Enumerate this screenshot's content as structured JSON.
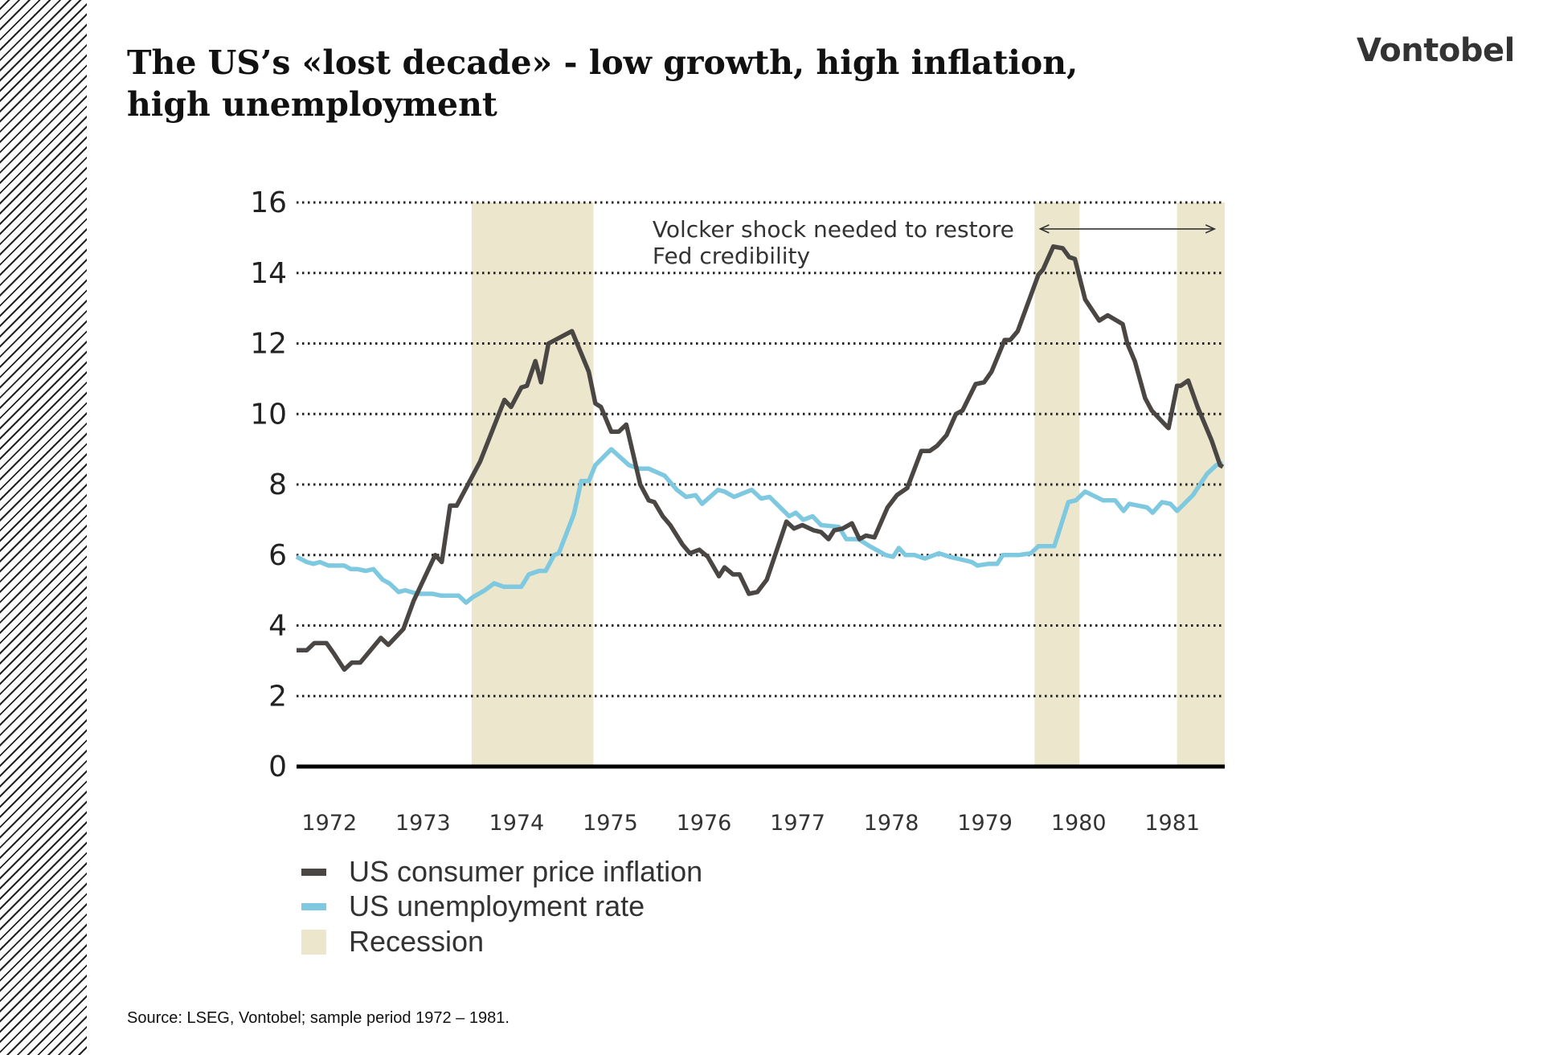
{
  "header": {
    "title": "The US’s «lost decade» - low growth, high inflation, high unemployment",
    "logo_text": "Vontobel"
  },
  "footer": {
    "source": "Source: LSEG, Vontobel; sample period 1972 – 1981."
  },
  "chart_data": {
    "type": "line",
    "title": "",
    "xlabel": "",
    "ylabel": "",
    "xlim": [
      1972.0,
      1981.91
    ],
    "ylim": [
      0,
      16
    ],
    "yticks": [
      0,
      2,
      4,
      6,
      8,
      10,
      12,
      14,
      16
    ],
    "xtick_labels": [
      "1972",
      "1973",
      "1974",
      "1975",
      "1976",
      "1977",
      "1978",
      "1979",
      "1980",
      "1981"
    ],
    "grid": "horizontal dotted",
    "legend_position": "bottom-left",
    "colors": {
      "inflation": "#4a4644",
      "unemployment": "#7ec8e0",
      "recession": "#ece6cc"
    },
    "recessions": [
      [
        1973.87,
        1975.17
      ],
      [
        1979.88,
        1980.36
      ],
      [
        1981.4,
        1981.91
      ]
    ],
    "recession_label": "Recession",
    "annotation": {
      "text_line1": "Volcker shock needed to restore",
      "text_line2": "Fed credibility",
      "arrow_from": 1979.94,
      "arrow_to": 1981.8,
      "arrow_y": 15.25
    },
    "series": [
      {
        "name": "US consumer price inflation",
        "points": [
          [
            1972.0,
            3.3
          ],
          [
            1972.11,
            3.3
          ],
          [
            1972.19,
            3.5
          ],
          [
            1972.32,
            3.5
          ],
          [
            1972.4,
            3.2
          ],
          [
            1972.51,
            2.75
          ],
          [
            1972.59,
            2.95
          ],
          [
            1972.68,
            2.95
          ],
          [
            1972.9,
            3.65
          ],
          [
            1972.98,
            3.45
          ],
          [
            1973.14,
            3.9
          ],
          [
            1973.25,
            4.7
          ],
          [
            1973.48,
            6.0
          ],
          [
            1973.55,
            5.8
          ],
          [
            1973.64,
            7.4
          ],
          [
            1973.71,
            7.4
          ],
          [
            1973.96,
            8.65
          ],
          [
            1974.22,
            10.4
          ],
          [
            1974.29,
            10.2
          ],
          [
            1974.4,
            10.75
          ],
          [
            1974.46,
            10.8
          ],
          [
            1974.55,
            11.5
          ],
          [
            1974.61,
            10.9
          ],
          [
            1974.69,
            12.0
          ],
          [
            1974.94,
            12.35
          ],
          [
            1975.12,
            11.2
          ],
          [
            1975.19,
            10.3
          ],
          [
            1975.25,
            10.2
          ],
          [
            1975.36,
            9.5
          ],
          [
            1975.44,
            9.5
          ],
          [
            1975.52,
            9.7
          ],
          [
            1975.67,
            8.0
          ],
          [
            1975.76,
            7.55
          ],
          [
            1975.82,
            7.5
          ],
          [
            1975.91,
            7.1
          ],
          [
            1975.99,
            6.85
          ],
          [
            1976.12,
            6.3
          ],
          [
            1976.2,
            6.05
          ],
          [
            1976.3,
            6.15
          ],
          [
            1976.39,
            5.95
          ],
          [
            1976.51,
            5.4
          ],
          [
            1976.57,
            5.65
          ],
          [
            1976.66,
            5.45
          ],
          [
            1976.73,
            5.45
          ],
          [
            1976.83,
            4.9
          ],
          [
            1976.92,
            4.95
          ],
          [
            1977.02,
            5.3
          ],
          [
            1977.23,
            6.95
          ],
          [
            1977.31,
            6.75
          ],
          [
            1977.4,
            6.85
          ],
          [
            1977.52,
            6.7
          ],
          [
            1977.6,
            6.65
          ],
          [
            1977.68,
            6.45
          ],
          [
            1977.74,
            6.7
          ],
          [
            1977.83,
            6.75
          ],
          [
            1977.93,
            6.9
          ],
          [
            1978.01,
            6.45
          ],
          [
            1978.08,
            6.55
          ],
          [
            1978.17,
            6.5
          ],
          [
            1978.31,
            7.35
          ],
          [
            1978.41,
            7.7
          ],
          [
            1978.52,
            7.9
          ],
          [
            1978.67,
            8.95
          ],
          [
            1978.76,
            8.95
          ],
          [
            1978.84,
            9.1
          ],
          [
            1978.94,
            9.4
          ],
          [
            1979.04,
            10.0
          ],
          [
            1979.11,
            10.1
          ],
          [
            1979.25,
            10.85
          ],
          [
            1979.34,
            10.9
          ],
          [
            1979.42,
            11.2
          ],
          [
            1979.56,
            12.1
          ],
          [
            1979.62,
            12.1
          ],
          [
            1979.7,
            12.35
          ],
          [
            1979.92,
            13.95
          ],
          [
            1979.97,
            14.1
          ],
          [
            1980.08,
            14.75
          ],
          [
            1980.18,
            14.7
          ],
          [
            1980.25,
            14.45
          ],
          [
            1980.31,
            14.4
          ],
          [
            1980.42,
            13.25
          ],
          [
            1980.57,
            12.65
          ],
          [
            1980.66,
            12.8
          ],
          [
            1980.82,
            12.55
          ],
          [
            1980.87,
            12.0
          ],
          [
            1980.95,
            11.5
          ],
          [
            1981.06,
            10.45
          ],
          [
            1981.13,
            10.1
          ],
          [
            1981.29,
            9.65
          ],
          [
            1981.31,
            9.6
          ],
          [
            1981.4,
            10.8
          ],
          [
            1981.44,
            10.8
          ],
          [
            1981.52,
            10.95
          ],
          [
            1981.62,
            10.2
          ],
          [
            1981.77,
            9.25
          ],
          [
            1981.86,
            8.55
          ],
          [
            1981.89,
            8.5
          ]
        ]
      },
      {
        "name": "US unemployment rate",
        "points": [
          [
            1972.0,
            5.95
          ],
          [
            1972.11,
            5.8
          ],
          [
            1972.18,
            5.75
          ],
          [
            1972.25,
            5.8
          ],
          [
            1972.34,
            5.7
          ],
          [
            1972.51,
            5.7
          ],
          [
            1972.58,
            5.6
          ],
          [
            1972.65,
            5.6
          ],
          [
            1972.74,
            5.55
          ],
          [
            1972.82,
            5.6
          ],
          [
            1972.92,
            5.3
          ],
          [
            1972.99,
            5.2
          ],
          [
            1973.09,
            4.95
          ],
          [
            1973.16,
            5.0
          ],
          [
            1973.29,
            4.9
          ],
          [
            1973.45,
            4.9
          ],
          [
            1973.54,
            4.85
          ],
          [
            1973.73,
            4.85
          ],
          [
            1973.81,
            4.65
          ],
          [
            1973.88,
            4.8
          ],
          [
            1974.01,
            5.0
          ],
          [
            1974.11,
            5.2
          ],
          [
            1974.21,
            5.1
          ],
          [
            1974.4,
            5.1
          ],
          [
            1974.48,
            5.45
          ],
          [
            1974.59,
            5.55
          ],
          [
            1974.66,
            5.55
          ],
          [
            1974.75,
            6.0
          ],
          [
            1974.8,
            6.05
          ],
          [
            1974.96,
            7.15
          ],
          [
            1975.04,
            8.1
          ],
          [
            1975.12,
            8.1
          ],
          [
            1975.19,
            8.55
          ],
          [
            1975.36,
            9.0
          ],
          [
            1975.55,
            8.55
          ],
          [
            1975.66,
            8.45
          ],
          [
            1975.76,
            8.45
          ],
          [
            1975.93,
            8.25
          ],
          [
            1976.06,
            7.85
          ],
          [
            1976.16,
            7.65
          ],
          [
            1976.26,
            7.7
          ],
          [
            1976.33,
            7.45
          ],
          [
            1976.5,
            7.85
          ],
          [
            1976.57,
            7.8
          ],
          [
            1976.67,
            7.65
          ],
          [
            1976.86,
            7.85
          ],
          [
            1976.96,
            7.6
          ],
          [
            1977.05,
            7.65
          ],
          [
            1977.26,
            7.1
          ],
          [
            1977.33,
            7.2
          ],
          [
            1977.41,
            7.0
          ],
          [
            1977.51,
            7.1
          ],
          [
            1977.6,
            6.85
          ],
          [
            1977.79,
            6.8
          ],
          [
            1977.87,
            6.45
          ],
          [
            1978.0,
            6.45
          ],
          [
            1978.12,
            6.25
          ],
          [
            1978.29,
            6.0
          ],
          [
            1978.37,
            5.95
          ],
          [
            1978.43,
            6.2
          ],
          [
            1978.5,
            6.0
          ],
          [
            1978.6,
            6.0
          ],
          [
            1978.71,
            5.9
          ],
          [
            1978.86,
            6.05
          ],
          [
            1978.97,
            5.95
          ],
          [
            1979.05,
            5.9
          ],
          [
            1979.21,
            5.8
          ],
          [
            1979.27,
            5.7
          ],
          [
            1979.39,
            5.75
          ],
          [
            1979.48,
            5.75
          ],
          [
            1979.54,
            6.0
          ],
          [
            1979.71,
            6.0
          ],
          [
            1979.84,
            6.05
          ],
          [
            1979.92,
            6.25
          ],
          [
            1980.09,
            6.25
          ],
          [
            1980.24,
            7.5
          ],
          [
            1980.32,
            7.55
          ],
          [
            1980.42,
            7.8
          ],
          [
            1980.61,
            7.55
          ],
          [
            1980.74,
            7.55
          ],
          [
            1980.83,
            7.25
          ],
          [
            1980.89,
            7.45
          ],
          [
            1981.08,
            7.35
          ],
          [
            1981.14,
            7.2
          ],
          [
            1981.24,
            7.5
          ],
          [
            1981.33,
            7.45
          ],
          [
            1981.4,
            7.25
          ],
          [
            1981.57,
            7.7
          ],
          [
            1981.72,
            8.3
          ],
          [
            1981.82,
            8.55
          ],
          [
            1981.89,
            8.6
          ]
        ]
      }
    ]
  }
}
